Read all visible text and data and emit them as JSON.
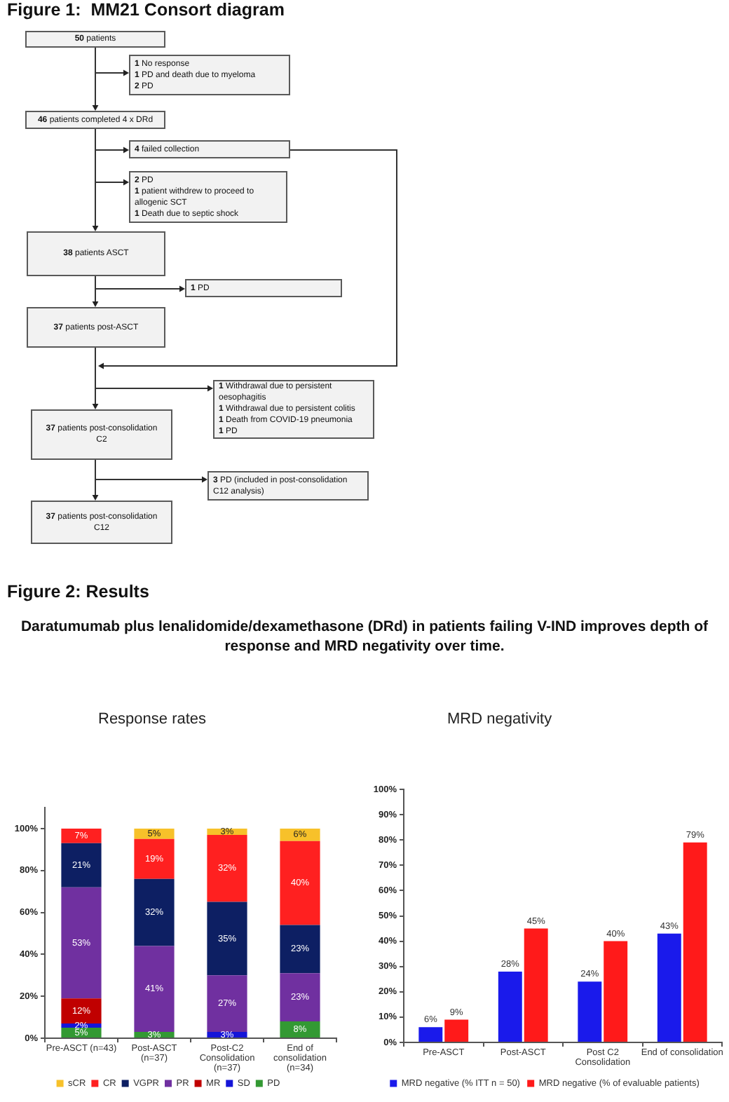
{
  "chart_data": [
    {
      "type": "other",
      "title": "Figure 1:  MM21 Consort diagram",
      "annotations": [
        "50 patients",
        "1 No response\n1 PD and death due to myeloma\n2 PD",
        "46 patients completed 4 x DRd",
        "4 failed collection",
        "2 PD\n1 patient withdrew to proceed to\nallogenic SCT\n1 Death due to septic shock",
        "38 patients ASCT",
        "1 PD",
        "37 patients post-ASCT",
        "1 Withdrawal due to persistent\noesophagitis\n1 Withdrawal due to persistent colitis\n1 Death from COVID-19 pneumonia\n1 PD",
        "37 patients post-consolidation\nC2",
        "3 PD (included in post-consolidation\nC12 analysis)",
        "37 patients post-consolidation\nC12"
      ]
    },
    {
      "type": "other",
      "title": "Figure 2: Results",
      "subtitle": "Daratumumab plus lenalidomide/dexamethasone (DRd) in patients failing V-IND improves depth of response and MRD negativity over time."
    },
    {
      "type": "bar",
      "title": "Response rates",
      "categories": [
        "Pre-ASCT (n=43)",
        "Post-ASCT\n(n=37)",
        "Post-C2\nConsolidation\n(n=37)",
        "End of\nconsolidation\n(n=34)"
      ],
      "stacked": true,
      "series": [
        {
          "name": "PD",
          "color": "#339933",
          "values": [
            5,
            3,
            null,
            8
          ],
          "value_labels": [
            "5%",
            "3%",
            null,
            "8%"
          ]
        },
        {
          "name": "SD",
          "color": "#1515d8",
          "values": [
            2,
            null,
            3,
            null
          ],
          "value_labels": [
            "2%",
            null,
            "3%",
            null
          ]
        },
        {
          "name": "MR",
          "color": "#c00000",
          "values": [
            12,
            null,
            null,
            null
          ],
          "value_labels": [
            "12%",
            null,
            null,
            null
          ]
        },
        {
          "name": "PR",
          "color": "#7030a0",
          "values": [
            53,
            41,
            27,
            23
          ],
          "value_labels": [
            "53%",
            "41%",
            "27%",
            "23%"
          ]
        },
        {
          "name": "VGPR",
          "color": "#0d1f63",
          "values": [
            21,
            32,
            35,
            23
          ],
          "value_labels": [
            "21%",
            "32%",
            "35%",
            "23%"
          ]
        },
        {
          "name": "CR",
          "color": "#ff2020",
          "values": [
            7,
            19,
            32,
            40
          ],
          "value_labels": [
            "7%",
            "19%",
            "32%",
            "40%"
          ]
        },
        {
          "name": "sCR",
          "color": "#f7c12a",
          "values": [
            null,
            5,
            3,
            6
          ],
          "value_labels": [
            null,
            "5%",
            "3%",
            "6%"
          ]
        }
      ],
      "ylim": [
        0,
        110
      ],
      "yticks": [
        {
          "value": 0,
          "label": "0%"
        },
        {
          "value": 20,
          "label": "20%"
        },
        {
          "value": 40,
          "label": "40%"
        },
        {
          "value": 60,
          "label": "60%"
        },
        {
          "value": 80,
          "label": "80%"
        },
        {
          "value": 100,
          "label": "100%"
        }
      ],
      "legend": "bottom"
    },
    {
      "type": "bar",
      "title": "MRD negativity",
      "categories": [
        "Pre-ASCT",
        "Post-ASCT",
        "Post C2\nConsolidation",
        "End of consolidation"
      ],
      "series": [
        {
          "name": "MRD negative (% ITT n = 50)",
          "color": "#1a1aeb",
          "values": [
            6,
            28,
            24,
            43
          ],
          "value_labels": [
            "6%",
            "28%",
            "24%",
            "43%"
          ]
        },
        {
          "name": "MRD negative (% of evaluable patients)",
          "color": "#ff1a1a",
          "values": [
            9,
            45,
            40,
            79
          ],
          "value_labels": [
            "9%",
            "45%",
            "40%",
            "79%"
          ]
        }
      ],
      "ylim": [
        0,
        100
      ],
      "yticks": [
        {
          "value": 0,
          "label": "0%"
        },
        {
          "value": 10,
          "label": "10%"
        },
        {
          "value": 20,
          "label": "20%"
        },
        {
          "value": 30,
          "label": "30%"
        },
        {
          "value": 40,
          "label": "40%"
        },
        {
          "value": 50,
          "label": "50%"
        },
        {
          "value": 60,
          "label": "60%"
        },
        {
          "value": 70,
          "label": "70%"
        },
        {
          "value": 80,
          "label": "80%"
        },
        {
          "value": 90,
          "label": "90%"
        },
        {
          "value": 100,
          "label": "100%"
        }
      ],
      "legend": "bottom"
    }
  ]
}
